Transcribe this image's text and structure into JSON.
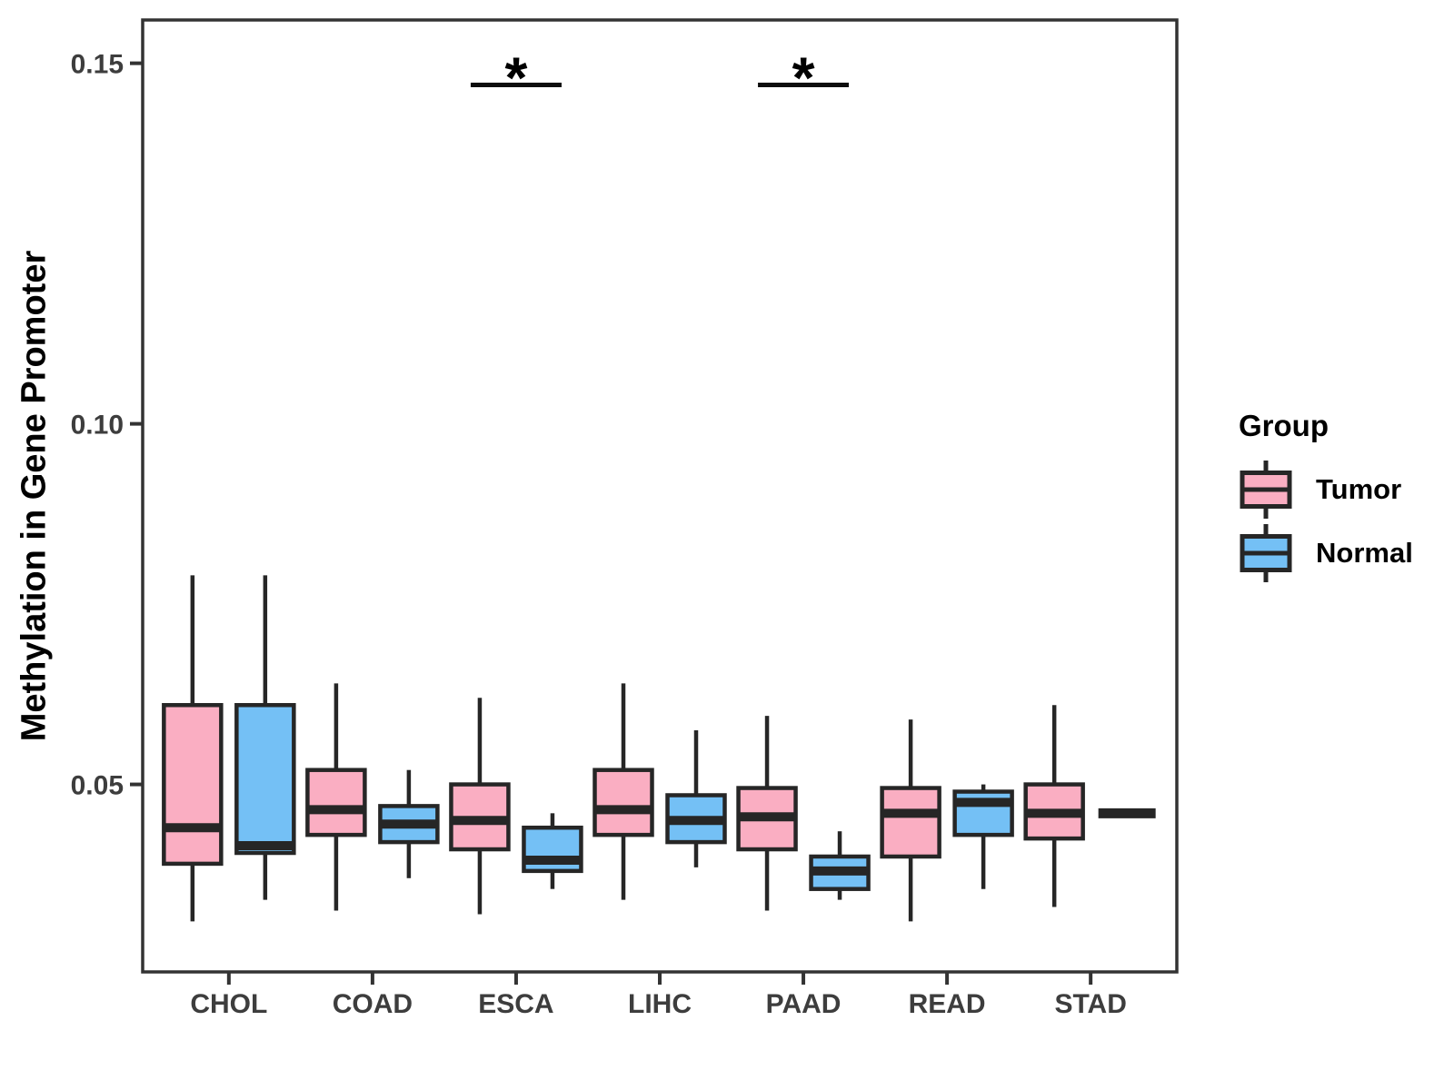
{
  "chart_data": {
    "type": "boxplot",
    "title": "",
    "xlabel": "",
    "ylabel": "Methylation in Gene Promoter",
    "categories": [
      "CHOL",
      "COAD",
      "ESCA",
      "LIHC",
      "PAAD",
      "READ",
      "STAD"
    ],
    "ylim": [
      0.024,
      0.156
    ],
    "yticks": [
      0.05,
      0.1,
      0.15
    ],
    "ytick_labels": [
      "0.05",
      "0.10",
      "0.15"
    ],
    "grid": false,
    "legend": {
      "title": "Group",
      "position": "right",
      "entries": [
        "Tumor",
        "Normal"
      ]
    },
    "groups": [
      {
        "name": "Tumor",
        "color": "#FAAEC2"
      },
      {
        "name": "Normal",
        "color": "#74C0F5"
      }
    ],
    "series": [
      {
        "name": "Tumor",
        "boxes": [
          {
            "category": "CHOL",
            "min": 0.031,
            "q1": 0.039,
            "median": 0.044,
            "q3": 0.061,
            "max": 0.079
          },
          {
            "category": "COAD",
            "min": 0.0325,
            "q1": 0.043,
            "median": 0.0465,
            "q3": 0.052,
            "max": 0.064
          },
          {
            "category": "ESCA",
            "min": 0.032,
            "q1": 0.041,
            "median": 0.045,
            "q3": 0.05,
            "max": 0.062
          },
          {
            "category": "LIHC",
            "min": 0.034,
            "q1": 0.043,
            "median": 0.0465,
            "q3": 0.052,
            "max": 0.064
          },
          {
            "category": "PAAD",
            "min": 0.0325,
            "q1": 0.041,
            "median": 0.0455,
            "q3": 0.0495,
            "max": 0.0595
          },
          {
            "category": "READ",
            "min": 0.031,
            "q1": 0.04,
            "median": 0.046,
            "q3": 0.0495,
            "max": 0.059
          },
          {
            "category": "STAD",
            "min": 0.033,
            "q1": 0.0425,
            "median": 0.046,
            "q3": 0.05,
            "max": 0.061
          }
        ]
      },
      {
        "name": "Normal",
        "boxes": [
          {
            "category": "CHOL",
            "min": 0.034,
            "q1": 0.0405,
            "median": 0.0415,
            "q3": 0.061,
            "max": 0.079
          },
          {
            "category": "COAD",
            "min": 0.037,
            "q1": 0.042,
            "median": 0.0445,
            "q3": 0.047,
            "max": 0.052
          },
          {
            "category": "ESCA",
            "min": 0.0355,
            "q1": 0.038,
            "median": 0.0395,
            "q3": 0.044,
            "max": 0.046
          },
          {
            "category": "LIHC",
            "min": 0.0385,
            "q1": 0.042,
            "median": 0.045,
            "q3": 0.0485,
            "max": 0.0575
          },
          {
            "category": "PAAD",
            "min": 0.034,
            "q1": 0.0355,
            "median": 0.038,
            "q3": 0.04,
            "max": 0.0435
          },
          {
            "category": "READ",
            "min": 0.0355,
            "q1": 0.043,
            "median": 0.0475,
            "q3": 0.049,
            "max": 0.05
          },
          {
            "category": "STAD",
            "min": 0.046,
            "q1": 0.046,
            "median": 0.046,
            "q3": 0.046,
            "max": 0.046
          }
        ]
      }
    ],
    "significance": [
      {
        "category": "ESCA",
        "label": "*",
        "y": 0.147
      },
      {
        "category": "PAAD",
        "label": "*",
        "y": 0.147
      }
    ],
    "style_colors": {
      "box_stroke": "#262626",
      "panel_border": "#333333",
      "tick_mark": "#333333",
      "tick_text": "#3d3d3d"
    }
  }
}
